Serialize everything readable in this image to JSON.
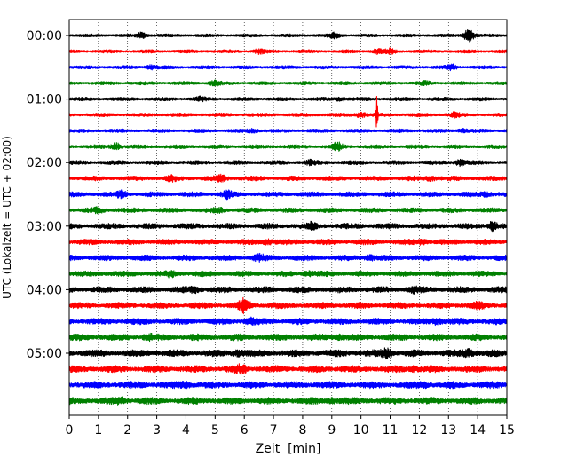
{
  "chart_data": {
    "type": "line",
    "title": "",
    "xlabel": "Zeit  [min]",
    "ylabel": "UTC (Lokalzeit = UTC + 02:00)",
    "xlim": [
      0,
      15
    ],
    "x_ticks": [
      "0",
      "1",
      "2",
      "3",
      "4",
      "5",
      "6",
      "7",
      "8",
      "9",
      "10",
      "11",
      "12",
      "13",
      "14",
      "15"
    ],
    "y_ticks": [
      "00:00",
      "01:00",
      "02:00",
      "03:00",
      "04:00",
      "05:00"
    ],
    "grid": "vertical dotted",
    "trace_minutes": 15,
    "colors": {
      "black": "#000000",
      "red": "#ff0000",
      "blue": "#0000ff",
      "green": "#008000"
    },
    "traces": [
      {
        "start": "00:00",
        "color": "black",
        "noise": 0.25,
        "events": [
          [
            2.5,
            3
          ],
          [
            9.1,
            2.5
          ],
          [
            13.7,
            7
          ]
        ]
      },
      {
        "start": "00:15",
        "color": "red",
        "noise": 0.3,
        "events": [
          [
            6.5,
            2
          ],
          [
            10.6,
            2.5
          ],
          [
            11.0,
            2
          ]
        ]
      },
      {
        "start": "00:30",
        "color": "blue",
        "noise": 0.3,
        "events": [
          [
            2.8,
            2
          ],
          [
            13.1,
            2.5
          ]
        ]
      },
      {
        "start": "00:45",
        "color": "green",
        "noise": 0.3,
        "events": [
          [
            5.0,
            2.5
          ],
          [
            12.2,
            1.5
          ]
        ]
      },
      {
        "start": "01:00",
        "color": "black",
        "noise": 0.35,
        "events": [
          [
            4.5,
            1.5
          ],
          [
            9.3,
            1.8
          ]
        ]
      },
      {
        "start": "01:15",
        "color": "red",
        "noise": 0.35,
        "events": [
          [
            10.0,
            2.5
          ],
          [
            10.55,
            22
          ],
          [
            13.2,
            2
          ]
        ]
      },
      {
        "start": "01:30",
        "color": "blue",
        "noise": 0.35,
        "events": [
          [
            6.3,
            1.5
          ],
          [
            13.5,
            1.5
          ]
        ]
      },
      {
        "start": "01:45",
        "color": "green",
        "noise": 0.4,
        "events": [
          [
            1.6,
            3.5
          ],
          [
            9.2,
            3.5
          ]
        ]
      },
      {
        "start": "02:00",
        "color": "black",
        "noise": 0.45,
        "events": [
          [
            8.3,
            2
          ],
          [
            13.4,
            3
          ]
        ]
      },
      {
        "start": "02:15",
        "color": "red",
        "noise": 0.55,
        "events": [
          [
            3.5,
            2
          ],
          [
            5.2,
            2.5
          ],
          [
            12.4,
            2
          ]
        ]
      },
      {
        "start": "02:30",
        "color": "blue",
        "noise": 0.6,
        "events": [
          [
            1.8,
            3
          ],
          [
            5.4,
            3.5
          ],
          [
            14.3,
            2
          ]
        ]
      },
      {
        "start": "02:45",
        "color": "green",
        "noise": 0.55,
        "events": [
          [
            1.0,
            2
          ],
          [
            5.1,
            2
          ]
        ]
      },
      {
        "start": "03:00",
        "color": "black",
        "noise": 0.7,
        "events": [
          [
            8.3,
            2.5
          ],
          [
            14.5,
            4
          ]
        ]
      },
      {
        "start": "03:15",
        "color": "red",
        "noise": 0.7,
        "events": [
          [
            6.8,
            2
          ],
          [
            12.1,
            2
          ]
        ]
      },
      {
        "start": "03:30",
        "color": "blue",
        "noise": 0.7,
        "events": [
          [
            6.5,
            2.5
          ],
          [
            10.3,
            2
          ]
        ]
      },
      {
        "start": "03:45",
        "color": "green",
        "noise": 0.7,
        "events": [
          [
            3.5,
            2
          ],
          [
            8.2,
            2
          ]
        ]
      },
      {
        "start": "04:00",
        "color": "black",
        "noise": 0.8,
        "events": [
          [
            4.3,
            2
          ],
          [
            11.8,
            2
          ]
        ]
      },
      {
        "start": "04:15",
        "color": "red",
        "noise": 0.8,
        "events": [
          [
            6.0,
            7
          ],
          [
            14.0,
            2
          ]
        ]
      },
      {
        "start": "04:30",
        "color": "blue",
        "noise": 0.85,
        "events": [
          [
            6.2,
            2
          ],
          [
            12.6,
            2.5
          ]
        ]
      },
      {
        "start": "04:45",
        "color": "green",
        "noise": 0.9,
        "events": [
          [
            2.7,
            2
          ],
          [
            9.2,
            2
          ]
        ]
      },
      {
        "start": "05:00",
        "color": "black",
        "noise": 0.95,
        "events": [
          [
            5.8,
            2.5
          ],
          [
            10.9,
            4
          ],
          [
            13.7,
            3
          ]
        ]
      },
      {
        "start": "05:15",
        "color": "red",
        "noise": 0.95,
        "events": [
          [
            5.9,
            3
          ],
          [
            11.8,
            2
          ]
        ]
      },
      {
        "start": "05:30",
        "color": "blue",
        "noise": 0.95,
        "events": [
          [
            4.0,
            2
          ],
          [
            12.2,
            2
          ]
        ]
      },
      {
        "start": "05:45",
        "color": "green",
        "noise": 0.95,
        "events": [
          [
            1.8,
            2
          ],
          [
            9.0,
            2
          ]
        ]
      }
    ]
  }
}
